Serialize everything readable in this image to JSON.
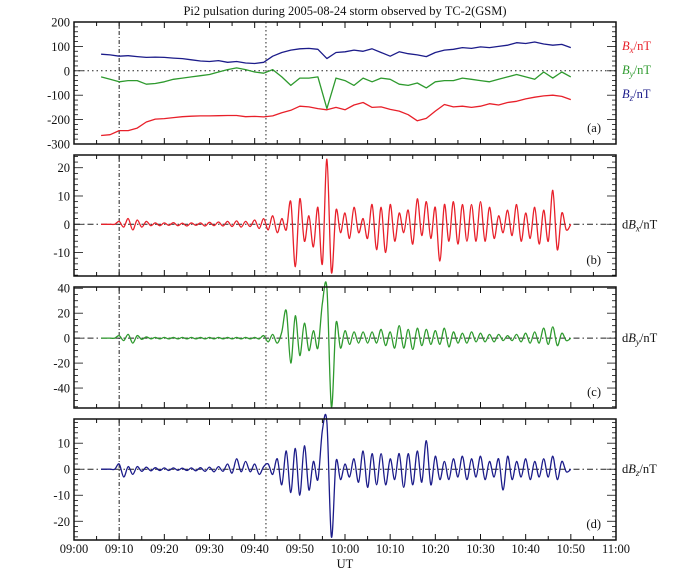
{
  "chart_data": {
    "type": "line",
    "title": "Pi2 pulsation during 2005-08-24 storm observed by TC-2(GSM)",
    "xlabel": "UT",
    "x_ticks": [
      "09:00",
      "09:10",
      "09:20",
      "09:30",
      "09:40",
      "09:50",
      "10:00",
      "10:10",
      "10:20",
      "10:30",
      "10:40",
      "10:50",
      "11:00"
    ],
    "x_range_minutes_after_0900": [
      0,
      120
    ],
    "vertical_markers_minutes_after_0900": [
      10,
      42.5
    ],
    "panels": [
      {
        "id": "a",
        "label": "(a)",
        "ylim": [
          -300,
          200
        ],
        "y_ticks": [
          200,
          100,
          0,
          -100,
          -200,
          -300
        ],
        "y_major": 100,
        "y_minor": 20,
        "zero_line": "dotted",
        "legend": [
          {
            "prefix": "",
            "var": "B",
            "sub": "x",
            "unit": "/nT",
            "color": "#e8202a"
          },
          {
            "prefix": "",
            "var": "B",
            "sub": "y",
            "unit": "/nT",
            "color": "#2e9a2e"
          },
          {
            "prefix": "",
            "var": "B",
            "sub": "z",
            "unit": "/nT",
            "color": "#1c1c8a"
          }
        ],
        "t0": 6,
        "dt": 2,
        "series": [
          {
            "name": "Bx",
            "color": "#e8202a",
            "values": [
              -265,
              -262,
              -245,
              -245,
              -235,
              -210,
              -198,
              -196,
              -192,
              -188,
              -186,
              -185,
              -185,
              -184,
              -183,
              -183,
              -188,
              -187,
              -189,
              -185,
              -172,
              -162,
              -145,
              -148,
              -155,
              -160,
              -150,
              -160,
              -140,
              -130,
              -150,
              -148,
              -158,
              -165,
              -180,
              -205,
              -195,
              -165,
              -138,
              -148,
              -145,
              -150,
              -145,
              -135,
              -140,
              -130,
              -125,
              -115,
              -108,
              -103,
              -100,
              -105,
              -118
            ]
          },
          {
            "name": "By",
            "color": "#2e9a2e",
            "values": [
              -25,
              -35,
              -45,
              -40,
              -40,
              -55,
              -52,
              -45,
              -35,
              -30,
              -25,
              -20,
              -15,
              -5,
              5,
              12,
              5,
              -5,
              -10,
              5,
              -25,
              -60,
              -30,
              -30,
              -25,
              -155,
              -30,
              -40,
              -60,
              -30,
              -45,
              -30,
              -35,
              -55,
              -60,
              -50,
              -70,
              -45,
              -40,
              -40,
              -30,
              -35,
              -40,
              -45,
              -35,
              -25,
              -15,
              -25,
              -35,
              -5,
              -30,
              -5,
              -25
            ]
          },
          {
            "name": "Bz",
            "color": "#1c1c8a",
            "values": [
              68,
              65,
              60,
              62,
              58,
              55,
              56,
              55,
              52,
              50,
              45,
              40,
              38,
              42,
              35,
              38,
              32,
              30,
              35,
              60,
              75,
              85,
              90,
              92,
              88,
              50,
              75,
              78,
              85,
              80,
              90,
              75,
              60,
              78,
              70,
              65,
              58,
              75,
              85,
              88,
              95,
              92,
              98,
              95,
              100,
              105,
              115,
              112,
              118,
              110,
              105,
              108,
              95
            ]
          }
        ]
      },
      {
        "id": "b",
        "label": "(b)",
        "ylim": [
          -18.3,
          24.5
        ],
        "y_ticks": [
          20,
          10,
          0,
          -10
        ],
        "y_major": 10,
        "y_minor": 2,
        "zero_line": "dashdot",
        "legend": [
          {
            "prefix": "d",
            "var": "B",
            "sub": "x",
            "unit": "/nT",
            "color": "#111111"
          }
        ],
        "t0": 6,
        "dt": 1,
        "series": [
          {
            "name": "dBx",
            "color": "#e8202a",
            "values": [
              0,
              0,
              0,
              0,
              1,
              -1,
              2,
              -2,
              1.5,
              -1,
              1,
              -0.5,
              0.5,
              -0.5,
              0.5,
              -0.4,
              0.6,
              -0.5,
              0.4,
              -0.6,
              0.5,
              -0.4,
              0.5,
              -0.6,
              0.7,
              -0.5,
              0.8,
              -0.6,
              1,
              -0.8,
              1.2,
              -1,
              1,
              -0.8,
              1.5,
              -1.5,
              2,
              -2,
              3,
              -3,
              2,
              -2,
              8,
              -15,
              9,
              -6,
              3,
              -8,
              6,
              -14,
              23,
              -17,
              5,
              -3,
              4,
              -5,
              6,
              -3,
              2,
              -5,
              7,
              -9,
              6,
              -10,
              7,
              -6,
              4,
              -3,
              5,
              -7,
              9,
              -4,
              8,
              -5,
              6,
              -13,
              7,
              -6,
              8,
              -7,
              7,
              -6,
              7,
              -6,
              8,
              -6,
              6,
              -5,
              3,
              -3,
              5,
              -4,
              7,
              -6,
              4,
              -5,
              6,
              -7,
              5,
              -6,
              12,
              -9,
              4,
              -2,
              0
            ]
          }
        ]
      },
      {
        "id": "c",
        "label": "(c)",
        "ylim": [
          -56,
          41
        ],
        "y_ticks": [
          40,
          20,
          0,
          -20,
          -40
        ],
        "y_major": 20,
        "y_minor": 5,
        "zero_line": "dashdot",
        "legend": [
          {
            "prefix": "d",
            "var": "B",
            "sub": "y",
            "unit": "/nT",
            "color": "#111111"
          }
        ],
        "t0": 6,
        "dt": 1,
        "series": [
          {
            "name": "dBy",
            "color": "#2e9a2e",
            "values": [
              0,
              0,
              0,
              0,
              2,
              -2,
              3,
              -4,
              2,
              -1,
              1,
              -0.5,
              0.6,
              -0.6,
              0.6,
              -0.6,
              0.6,
              -0.6,
              0.6,
              -0.6,
              0.6,
              -0.6,
              0.6,
              -0.6,
              0.6,
              -0.6,
              0.6,
              -0.6,
              0.6,
              -0.6,
              0.6,
              -0.6,
              0.6,
              -0.6,
              0.6,
              -0.6,
              2,
              -3,
              3,
              -4,
              5,
              22,
              -20,
              18,
              -14,
              12,
              -10,
              6,
              -8,
              28,
              40,
              -55,
              12,
              -8,
              6,
              -5,
              5,
              -4,
              5,
              -4,
              5,
              -4,
              7,
              -6,
              5,
              -8,
              10,
              -8,
              7,
              -9,
              8,
              -6,
              7,
              -5,
              6,
              -5,
              8,
              -7,
              5,
              -4,
              4,
              -4,
              5,
              -3,
              4,
              -3,
              3,
              -3,
              3,
              -2,
              2,
              -2,
              3,
              -3,
              4,
              -4,
              5,
              -4,
              8,
              -5,
              9,
              -6,
              4,
              -2,
              0
            ]
          }
        ]
      },
      {
        "id": "d",
        "label": "(d)",
        "ylim": [
          -27.2,
          19.3
        ],
        "y_ticks": [
          10,
          0,
          -10,
          -20
        ],
        "y_major": 10,
        "y_minor": 2,
        "zero_line": "dashdot",
        "legend": [
          {
            "prefix": "d",
            "var": "B",
            "sub": "z",
            "unit": "/nT",
            "color": "#111111"
          }
        ],
        "t0": 6,
        "dt": 1,
        "series": [
          {
            "name": "dBz",
            "color": "#1c1c8a",
            "values": [
              0,
              0,
              0,
              0,
              2,
              -3,
              1,
              -2,
              1,
              -0.8,
              0.8,
              -0.6,
              0.6,
              -0.5,
              0.5,
              -0.5,
              0.5,
              -0.4,
              0.4,
              -0.5,
              0.5,
              -0.6,
              0.6,
              -0.8,
              0.8,
              -1,
              1,
              -0.8,
              2,
              -1.5,
              4,
              -1,
              3,
              -1,
              2,
              -2,
              1,
              2,
              -2,
              4,
              -6,
              7,
              -9,
              8,
              -10,
              9,
              -8,
              3,
              -4,
              15,
              18,
              -26,
              3,
              -4,
              2,
              -3,
              4,
              -5,
              7,
              -7,
              6,
              -6,
              6,
              -6,
              4,
              -4,
              6,
              -7,
              6,
              -6,
              7,
              -5,
              11,
              -6,
              5,
              -4,
              3,
              -4,
              4,
              -3,
              5,
              -4,
              4,
              -3,
              5,
              -4,
              3,
              -3,
              4,
              -8,
              5,
              -4,
              3,
              -3,
              4,
              -4,
              3,
              -3,
              4,
              -3,
              5,
              -4,
              3,
              -1,
              0
            ]
          }
        ]
      }
    ]
  }
}
